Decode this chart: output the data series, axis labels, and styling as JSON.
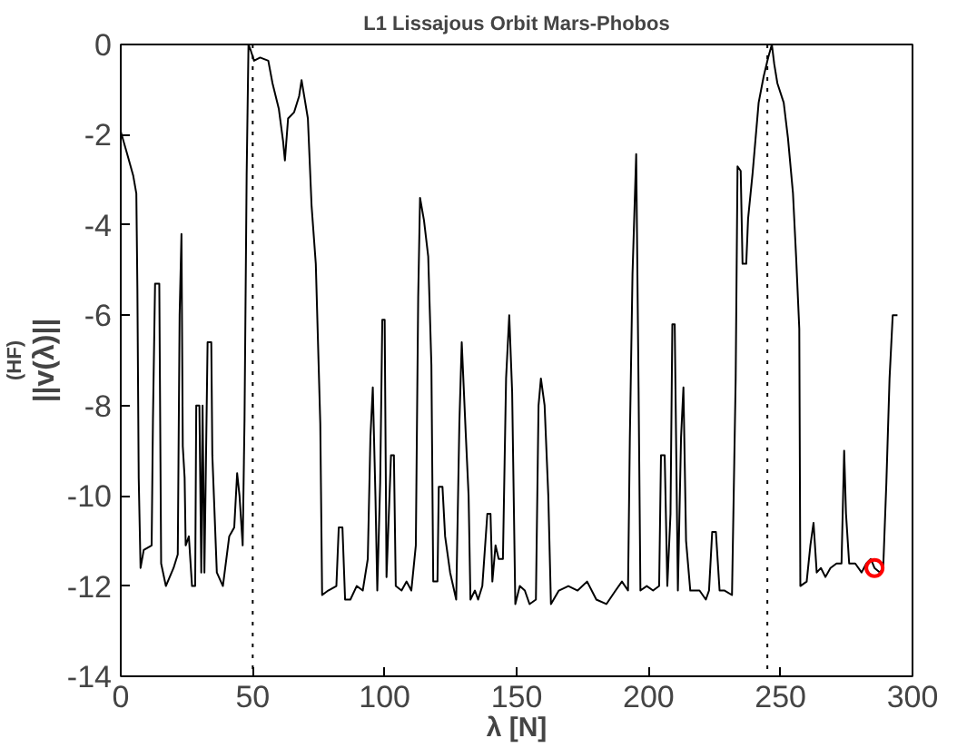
{
  "chart_data": {
    "type": "line",
    "title": "L1 Lissajous Orbit Mars-Phobos",
    "xlabel": "λ [N]",
    "ylabel": "||v(λ)||$^{(HF)}$",
    "xlim": [
      0,
      300
    ],
    "ylim": [
      -14,
      0
    ],
    "xticks": [
      0,
      50,
      100,
      150,
      200,
      250,
      300
    ],
    "yticks": [
      -14,
      -12,
      -10,
      -8,
      -6,
      -4,
      -2,
      0
    ],
    "grid": false,
    "ref_lines": [
      {
        "axis": "x",
        "value": 50,
        "color": "#000000",
        "line_style": "dotted"
      },
      {
        "axis": "x",
        "value": 245,
        "color": "#000000",
        "line_style": "dotted"
      }
    ],
    "series": [
      {
        "color": "#000000",
        "line_style": "solid",
        "marker": "none",
        "x": [
          0,
          2.3,
          4.7,
          5.9,
          6.3,
          6.8,
          7.5,
          8.7,
          11.7,
          12.2,
          13,
          14.6,
          15.3,
          17.1,
          20,
          21.6,
          22.3,
          23,
          23.5,
          24.2,
          24.6,
          25.8,
          27,
          28.2,
          28.6,
          29.8,
          30.5,
          31,
          31.7,
          32.9,
          34.3,
          34.7,
          36.4,
          38.7,
          41.1,
          43,
          44.1,
          45,
          46.2,
          46.9,
          47.7,
          48.4,
          49.3,
          50.5,
          52.8,
          55.9,
          57.5,
          59.9,
          61.5,
          62.2,
          63.4,
          65.7,
          67.6,
          68.5,
          69.7,
          70.9,
          72.3,
          73.9,
          75.6,
          76.3,
          78.6,
          81.7,
          82.6,
          84,
          85,
          87,
          89.4,
          91.7,
          93.6,
          94.6,
          95.5,
          96.5,
          97.2,
          98.3,
          99.1,
          100,
          100.7,
          102.4,
          103.5,
          104.2,
          106.4,
          108.3,
          110.1,
          111.8,
          112.7,
          113.4,
          114.9,
          116.5,
          117.7,
          118.4,
          120,
          120.5,
          121.9,
          122.9,
          124.8,
          127.1,
          128.3,
          129.2,
          130.7,
          131.8,
          132.5,
          134.2,
          135.4,
          137,
          138.9,
          140.1,
          140.8,
          142,
          143.2,
          144.8,
          146,
          147.2,
          148.3,
          149.5,
          151.2,
          153.1,
          154.9,
          157.3,
          158.3,
          159.2,
          160.6,
          162,
          163,
          166,
          169.6,
          173.1,
          176.7,
          180.2,
          184,
          187.5,
          189.9,
          192.2,
          192.9,
          193.9,
          195.3,
          196.2,
          196.9,
          199.3,
          201.7,
          204,
          204.7,
          206.1,
          207.1,
          208.3,
          209,
          209.9,
          211.1,
          212.3,
          213.2,
          214.2,
          215.8,
          217.5,
          219.3,
          221.7,
          222.9,
          224.1,
          225.5,
          226.9,
          228.8,
          231.6,
          233,
          233.7,
          234.9,
          235.6,
          237,
          237.7,
          239.4,
          241.7,
          243.6,
          245.3,
          246.7,
          247.6,
          248.8,
          251.2,
          252.8,
          254.7,
          255.9,
          257.1,
          257.5,
          259.9,
          261.3,
          262.5,
          263.7,
          265.3,
          267,
          268.9,
          271.2,
          273.1,
          274.1,
          274.8,
          276,
          278.3,
          280.7,
          282.5,
          284.2,
          285.6,
          287.7,
          288.9,
          290.1,
          291.3,
          292.5,
          294.3
        ],
        "values": [
          -1.93,
          -2.4,
          -2.9,
          -3.3,
          -5.4,
          -9.6,
          -11.6,
          -11.2,
          -11.1,
          -8.3,
          -5.3,
          -5.3,
          -11.5,
          -12,
          -11.6,
          -11.3,
          -6,
          -4.2,
          -8.9,
          -9.6,
          -11.1,
          -10.9,
          -12,
          -12,
          -8,
          -8,
          -11.7,
          -8,
          -11.7,
          -6.6,
          -6.6,
          -9.1,
          -11.7,
          -12,
          -10.9,
          -10.7,
          -9.5,
          -10,
          -11.1,
          -8.3,
          -2.9,
          0,
          -0.14,
          -0.36,
          -0.29,
          -0.36,
          -0.86,
          -1.43,
          -2.14,
          -2.57,
          -1.64,
          -1.5,
          -1.14,
          -0.79,
          -1.21,
          -1.64,
          -3.57,
          -4.86,
          -8.4,
          -12.2,
          -12.1,
          -12,
          -10.7,
          -10.7,
          -12.3,
          -12.3,
          -12,
          -12.1,
          -11.4,
          -8.7,
          -7.6,
          -10,
          -12.1,
          -9.7,
          -6.1,
          -6.1,
          -11.8,
          -9.1,
          -9.1,
          -12,
          -12.1,
          -11.9,
          -12.1,
          -11.1,
          -5.6,
          -3.4,
          -3.9,
          -4.7,
          -7.1,
          -11.9,
          -11.9,
          -9.8,
          -9.8,
          -10.9,
          -11.7,
          -12.3,
          -8.4,
          -6.6,
          -8.6,
          -10,
          -12.3,
          -12.1,
          -12.3,
          -12,
          -10.4,
          -10.4,
          -11.9,
          -11.1,
          -11.4,
          -11.4,
          -7.4,
          -6,
          -7.7,
          -12.4,
          -12,
          -12.1,
          -12.4,
          -12.3,
          -8,
          -7.4,
          -8,
          -10,
          -12.4,
          -12.1,
          -12,
          -12.1,
          -11.9,
          -12.3,
          -12.4,
          -12.1,
          -11.9,
          -12.1,
          -8.7,
          -5.1,
          -2.43,
          -7.6,
          -12.1,
          -12,
          -12.1,
          -12,
          -9.1,
          -9.1,
          -12,
          -10.4,
          -6.2,
          -6.2,
          -12.1,
          -8.7,
          -7.6,
          -11,
          -12.1,
          -12.1,
          -12.1,
          -12.3,
          -12.1,
          -10.8,
          -10.8,
          -12.1,
          -12.1,
          -12.2,
          -7.4,
          -2.7,
          -2.8,
          -4.86,
          -4.86,
          -3.86,
          -2.86,
          -1.29,
          -0.71,
          -0.29,
          0,
          -0.43,
          -0.86,
          -1.29,
          -2.07,
          -3.29,
          -4.71,
          -6.3,
          -12,
          -11.9,
          -11.1,
          -10.6,
          -11.7,
          -11.6,
          -11.8,
          -11.6,
          -11.5,
          -11.5,
          -9,
          -10.4,
          -11.5,
          -11.5,
          -11.7,
          -11.5,
          -11.4,
          -11.6,
          -11.7,
          -11.6,
          -9.7,
          -7.4,
          -6,
          -6
        ]
      },
      {
        "type": "scatter",
        "color": "#ff0000",
        "marker": "circle",
        "x": [
          285.6
        ],
        "values": [
          -11.6
        ]
      }
    ]
  }
}
